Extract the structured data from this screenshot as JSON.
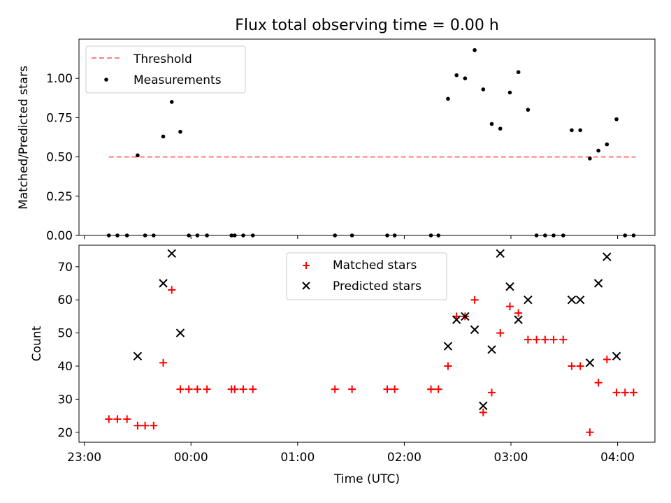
{
  "chart_data": [
    {
      "type": "scatter",
      "title": "Flux total observing time = 0.00 h",
      "xlabel": "",
      "ylabel": "Matched/Predicted stars",
      "xlim_hours": [
        -1.05,
        4.35
      ],
      "ylim": [
        0,
        1.25
      ],
      "yticks": [
        0.0,
        0.25,
        0.5,
        0.75,
        1.0
      ],
      "ytick_labels": [
        "0.00",
        "0.25",
        "0.50",
        "0.75",
        "1.00"
      ],
      "legend_position": "top-left",
      "series": [
        {
          "name": "Threshold",
          "kind": "dashed-line",
          "color": "#ff7f7f",
          "x": [
            -0.77,
            4.17
          ],
          "y": [
            0.5,
            0.5
          ]
        },
        {
          "name": "Measurements",
          "kind": "dots",
          "color": "#000000",
          "x": [
            -0.77,
            -0.69,
            -0.6,
            -0.5,
            -0.43,
            -0.35,
            -0.26,
            -0.18,
            -0.1,
            -0.02,
            0.06,
            0.15,
            0.38,
            0.41,
            0.49,
            0.58,
            1.35,
            1.51,
            1.84,
            1.91,
            2.25,
            2.32,
            2.41,
            2.49,
            2.57,
            2.66,
            2.74,
            2.82,
            2.9,
            2.99,
            3.07,
            3.16,
            3.24,
            3.32,
            3.4,
            3.49,
            3.57,
            3.65,
            3.74,
            3.82,
            3.9,
            3.99,
            4.07,
            4.15
          ],
          "y": [
            0,
            0,
            0,
            0.51,
            0,
            0,
            0.63,
            0.85,
            0.66,
            0,
            0,
            0,
            0,
            0,
            0,
            0,
            0,
            0,
            0,
            0,
            0,
            0,
            0.87,
            1.02,
            1.0,
            1.18,
            0.93,
            0.71,
            0.68,
            0.91,
            1.04,
            0.8,
            0,
            0,
            0,
            0,
            0.67,
            0.67,
            0.49,
            0.54,
            0.58,
            0.74,
            0,
            0
          ]
        }
      ]
    },
    {
      "type": "scatter",
      "title": "",
      "xlabel": "Time (UTC)",
      "ylabel": "Count",
      "xlim_hours": [
        -1.05,
        4.35
      ],
      "ylim": [
        17,
        76.5
      ],
      "yticks": [
        20,
        30,
        40,
        50,
        60,
        70
      ],
      "ytick_labels": [
        "20",
        "30",
        "40",
        "50",
        "60",
        "70"
      ],
      "xticks_hours": [
        -1,
        0,
        1,
        2,
        3,
        4
      ],
      "xtick_labels": [
        "23:00",
        "00:00",
        "01:00",
        "02:00",
        "03:00",
        "04:00"
      ],
      "legend_position": "top-center",
      "series": [
        {
          "name": "Matched stars",
          "marker": "plus",
          "color": "#ff0000",
          "x": [
            -0.77,
            -0.69,
            -0.6,
            -0.5,
            -0.43,
            -0.35,
            -0.26,
            -0.18,
            -0.1,
            -0.02,
            0.06,
            0.15,
            0.38,
            0.41,
            0.49,
            0.58,
            1.35,
            1.51,
            1.84,
            1.91,
            2.25,
            2.32,
            2.41,
            2.49,
            2.57,
            2.66,
            2.74,
            2.82,
            2.9,
            2.99,
            3.07,
            3.16,
            3.24,
            3.32,
            3.4,
            3.49,
            3.57,
            3.65,
            3.74,
            3.82,
            3.9,
            3.99,
            4.07,
            4.15
          ],
          "y": [
            24,
            24,
            24,
            22,
            22,
            22,
            41,
            63,
            33,
            33,
            33,
            33,
            33,
            33,
            33,
            33,
            33,
            33,
            33,
            33,
            33,
            33,
            40,
            55,
            55,
            60,
            26,
            32,
            50,
            58,
            56,
            48,
            48,
            48,
            48,
            48,
            40,
            40,
            20,
            35,
            42,
            32,
            32,
            32
          ]
        },
        {
          "name": "Predicted stars",
          "marker": "x",
          "color": "#000000",
          "x": [
            -0.5,
            -0.26,
            -0.18,
            -0.1,
            2.41,
            2.49,
            2.57,
            2.66,
            2.74,
            2.82,
            2.9,
            2.99,
            3.07,
            3.16,
            3.57,
            3.65,
            3.74,
            3.82,
            3.9,
            3.99
          ],
          "y": [
            43,
            65,
            74,
            50,
            46,
            54,
            55,
            51,
            28,
            45,
            74,
            64,
            54,
            60,
            60,
            60,
            41,
            65,
            73,
            43
          ]
        }
      ]
    }
  ]
}
